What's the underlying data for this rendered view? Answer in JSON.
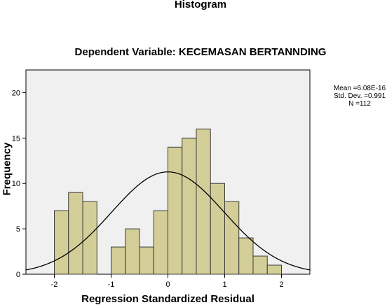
{
  "chart_data": {
    "type": "bar",
    "title": "Histogram",
    "subtitle": "Dependent Variable: KECEMASAN BERTANNDING",
    "xlabel": "Regression Standardized Residual",
    "ylabel": "Frequency",
    "xlim": [
      -2.5,
      2.5
    ],
    "ylim": [
      0,
      22.5
    ],
    "x_ticks": [
      -2,
      -1,
      0,
      1,
      2
    ],
    "y_ticks": [
      0,
      5,
      10,
      15,
      20
    ],
    "bin_width": 0.25,
    "bins": [
      {
        "x0": -2.0,
        "count": 7
      },
      {
        "x0": -1.75,
        "count": 9
      },
      {
        "x0": -1.5,
        "count": 8
      },
      {
        "x0": -1.0,
        "count": 3
      },
      {
        "x0": -0.75,
        "count": 5
      },
      {
        "x0": -0.5,
        "count": 3
      },
      {
        "x0": -0.25,
        "count": 7
      },
      {
        "x0": 0.0,
        "count": 14
      },
      {
        "x0": 0.25,
        "count": 15
      },
      {
        "x0": 0.5,
        "count": 16
      },
      {
        "x0": 0.75,
        "count": 10
      },
      {
        "x0": 1.0,
        "count": 8
      },
      {
        "x0": 1.25,
        "count": 4
      },
      {
        "x0": 1.5,
        "count": 2
      },
      {
        "x0": 1.75,
        "count": 1
      }
    ],
    "normal_curve": {
      "mean": 0.0,
      "sd": 0.991,
      "n": 112
    },
    "stats": {
      "mean": "Mean =6.08E-16",
      "sd": "Std. Dev. =0.991",
      "n": "N =112"
    },
    "colors": {
      "plot_background": "#f0f0f0",
      "bar_fill": "#d3ce97",
      "bar_stroke": "#3c3c3c",
      "curve": "#000000"
    },
    "grid": false,
    "legend": "right"
  }
}
